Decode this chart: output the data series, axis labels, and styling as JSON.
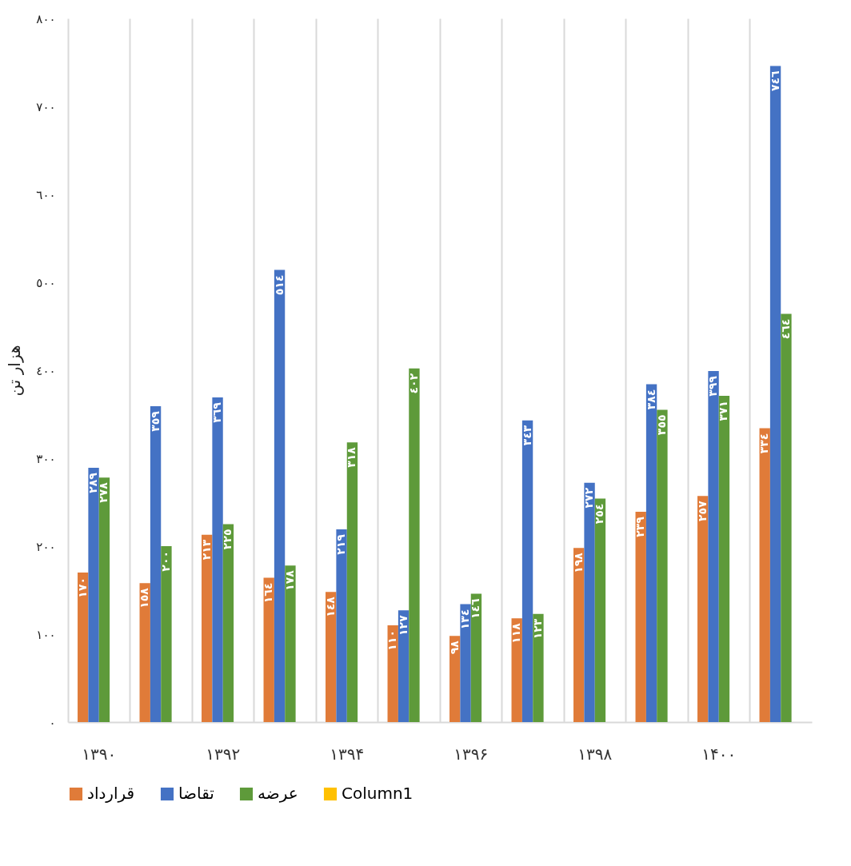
{
  "chart_data": {
    "type": "bar",
    "ylabel": "هزار تن",
    "categories": [
      "۱۳۹۰",
      null,
      "۱۳۹۲",
      null,
      "۱۳۹۴",
      null,
      "۱۳۹۶",
      null,
      "۱۳۹۸",
      null,
      "۱۴۰۰",
      null
    ],
    "series": [
      {
        "name": "قرارداد",
        "color": "#e07b39",
        "values": [
          170,
          158,
          213,
          164,
          148,
          110,
          98,
          118,
          198,
          239,
          257,
          334
        ],
        "value_labels": [
          "۱۷۰",
          "۱٥۸",
          "۲۱۳",
          "۱٦٤",
          "۱٤۸",
          "۱۱۰",
          "۹۸",
          "۱۱۸",
          "۱۹۸",
          "۲۳۹",
          "۲٥۷",
          "۳۳٤"
        ]
      },
      {
        "name": "تقاضا",
        "color": "#4472c4",
        "values": [
          289,
          359,
          369,
          514,
          219,
          127,
          134,
          343,
          272,
          384,
          399,
          746
        ],
        "value_labels": [
          "۲۸۹",
          "۳٥۹",
          "۳٦۹",
          "٥۱٤",
          "۲۱۹",
          "۱۲۷",
          "۱۳٤",
          "۳٤۳",
          "۲۷۲",
          "۳۸٤",
          "۳۹۹",
          "۷٤٦"
        ]
      },
      {
        "name": "عرضه",
        "color": "#5e9a3a",
        "values": [
          278,
          200,
          225,
          178,
          318,
          402,
          146,
          123,
          254,
          355,
          371,
          464
        ],
        "value_labels": [
          "۲۷۸",
          "۲۰۰",
          "۲۲٥",
          "۱۷۸",
          "۳۱۸",
          "٤۰۲",
          "۱٤٦",
          "۱۲۳",
          "۲٥٤",
          "۳٥٥",
          "۳۷۱",
          "٤٦٤"
        ]
      },
      {
        "name": "Column1",
        "color": "#ffc000",
        "values": [
          null,
          null,
          null,
          null,
          null,
          null,
          null,
          null,
          null,
          null,
          null,
          null
        ]
      }
    ],
    "ylim": [
      0,
      800
    ],
    "yticks": [
      {
        "value": 0,
        "label": "۰"
      },
      {
        "value": 100,
        "label": "۱۰۰"
      },
      {
        "value": 200,
        "label": "۲۰۰"
      },
      {
        "value": 300,
        "label": "۳۰۰"
      },
      {
        "value": 400,
        "label": "٤۰۰"
      },
      {
        "value": 500,
        "label": "٥۰۰"
      },
      {
        "value": 600,
        "label": "٦۰۰"
      },
      {
        "value": 700,
        "label": "۷۰۰"
      },
      {
        "value": 800,
        "label": "۸۰۰"
      }
    ],
    "grid": "x",
    "legend": "bottom"
  }
}
